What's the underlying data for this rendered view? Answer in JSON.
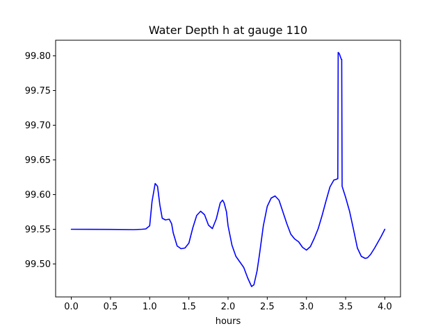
{
  "chart_data": {
    "type": "line",
    "title": "Water Depth h at gauge 110",
    "xlabel": "hours",
    "ylabel": "",
    "xlim": [
      -0.2,
      4.2
    ],
    "ylim": [
      99.4525,
      99.8225
    ],
    "grid": false,
    "x_ticks": [
      0.0,
      0.5,
      1.0,
      1.5,
      2.0,
      2.5,
      3.0,
      3.5,
      4.0
    ],
    "x_tick_labels": [
      "0.0",
      "0.5",
      "1.0",
      "1.5",
      "2.0",
      "2.5",
      "3.0",
      "3.5",
      "4.0"
    ],
    "y_ticks": [
      99.5,
      99.55,
      99.6,
      99.65,
      99.7,
      99.75,
      99.8
    ],
    "y_tick_labels": [
      "99.50",
      "99.55",
      "99.60",
      "99.65",
      "99.70",
      "99.75",
      "99.80"
    ],
    "series": [
      {
        "color": "#0000ff",
        "x": [
          0.0,
          0.5,
          0.8,
          0.9,
          0.95,
          1.0,
          1.03,
          1.07,
          1.1,
          1.13,
          1.16,
          1.2,
          1.25,
          1.28,
          1.3,
          1.35,
          1.4,
          1.45,
          1.5,
          1.55,
          1.6,
          1.65,
          1.7,
          1.75,
          1.8,
          1.85,
          1.9,
          1.93,
          1.95,
          1.98,
          2.0,
          2.05,
          2.1,
          2.15,
          2.2,
          2.25,
          2.3,
          2.33,
          2.37,
          2.4,
          2.45,
          2.5,
          2.55,
          2.6,
          2.65,
          2.7,
          2.75,
          2.8,
          2.85,
          2.9,
          2.95,
          3.0,
          3.05,
          3.1,
          3.15,
          3.2,
          3.25,
          3.3,
          3.35,
          3.38,
          3.4,
          3.405,
          3.42,
          3.445,
          3.45,
          3.455,
          3.5,
          3.55,
          3.6,
          3.65,
          3.7,
          3.75,
          3.78,
          3.82,
          3.87,
          3.9,
          3.95,
          4.0
        ],
        "y": [
          99.55,
          99.5498,
          99.5495,
          99.55,
          99.5505,
          99.555,
          99.59,
          99.616,
          99.612,
          99.585,
          99.566,
          99.5635,
          99.5645,
          99.558,
          99.545,
          99.526,
          99.522,
          99.523,
          99.53,
          99.552,
          99.57,
          99.576,
          99.571,
          99.556,
          99.551,
          99.565,
          99.588,
          99.592,
          99.588,
          99.575,
          99.555,
          99.527,
          99.511,
          99.503,
          99.495,
          99.48,
          99.4675,
          99.47,
          99.49,
          99.513,
          99.555,
          99.583,
          99.595,
          99.598,
          99.592,
          99.575,
          99.558,
          99.543,
          99.536,
          99.532,
          99.524,
          99.52,
          99.525,
          99.537,
          99.551,
          99.57,
          99.591,
          99.611,
          99.621,
          99.622,
          99.623,
          99.805,
          99.803,
          99.795,
          99.795,
          99.612,
          99.596,
          99.576,
          99.55,
          99.523,
          99.511,
          99.508,
          99.509,
          99.514,
          99.523,
          99.529,
          99.539,
          99.55
        ]
      }
    ]
  }
}
